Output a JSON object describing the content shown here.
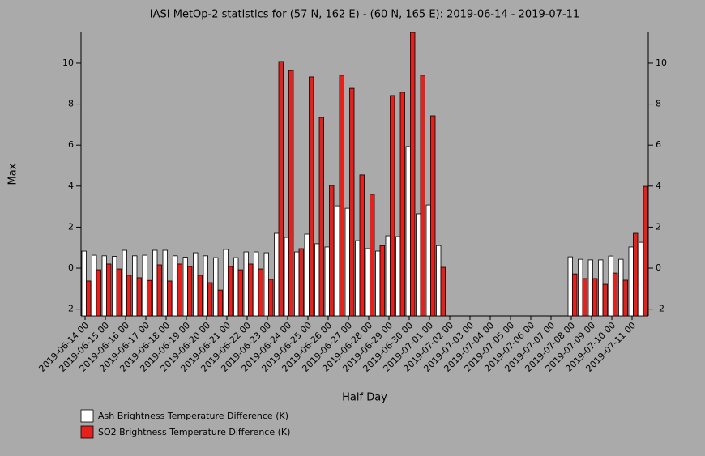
{
  "chart_data": {
    "type": "bar",
    "title": "IASI MetOp-2 statistics for (57 N, 162 E) - (60 N, 165 E): 2019-06-14 - 2019-07-11",
    "x_label": "Half Day",
    "y_label": "Max",
    "categories": [
      "2019-06-14 00",
      null,
      "2019-06-15 00",
      null,
      "2019-06-16 00",
      null,
      "2019-06-17 00",
      null,
      "2019-06-18 00",
      null,
      "2019-06-19 00",
      null,
      "2019-06-20 00",
      null,
      "2019-06-21 00",
      null,
      "2019-06-22 00",
      null,
      "2019-06-23 00",
      null,
      "2019-06-24 00",
      null,
      "2019-06-25 00",
      null,
      "2019-06-26 00",
      null,
      "2019-06-27 00",
      null,
      "2019-06-28 00",
      null,
      "2019-06-29 00",
      null,
      "2019-06-30 00",
      null,
      "2019-07-01 00",
      null,
      "2019-07-02 00",
      null,
      "2019-07-03 00",
      null,
      "2019-07-04 00",
      null,
      "2019-07-05 00",
      null,
      "2019-07-06 00",
      null,
      "2019-07-07 00",
      null,
      "2019-07-08 00",
      null,
      "2019-07-09 00",
      null,
      "2019-07-10 00",
      null,
      "2019-07-11 00",
      null
    ],
    "series": [
      {
        "name": "Ash Brightness Temperature Difference (K)",
        "color": "#ffffff",
        "values": [
          0.83,
          0.63,
          0.6,
          0.57,
          0.87,
          0.6,
          0.63,
          0.87,
          0.87,
          0.6,
          0.53,
          0.75,
          0.6,
          0.51,
          0.91,
          0.51,
          0.79,
          0.79,
          0.75,
          1.7,
          1.5,
          0.79,
          1.66,
          1.19,
          1.03,
          3.04,
          2.92,
          1.34,
          0.95,
          0.83,
          1.58,
          1.54,
          5.93,
          2.65,
          3.08,
          1.1,
          null,
          null,
          null,
          null,
          null,
          null,
          null,
          null,
          null,
          null,
          null,
          null,
          0.55,
          0.43,
          0.4,
          0.4,
          0.59,
          0.43,
          1.03,
          1.26
        ]
      },
      {
        "name": "SO2 Brightness Temperature Difference (K)",
        "color": "#e8201c",
        "values": [
          -0.63,
          -0.08,
          0.2,
          -0.04,
          -0.35,
          -0.47,
          -0.6,
          0.16,
          -0.63,
          0.2,
          0.08,
          -0.35,
          -0.71,
          -1.07,
          0.08,
          -0.08,
          0.2,
          -0.04,
          -0.55,
          10.08,
          9.64,
          0.95,
          9.33,
          7.35,
          4.03,
          9.41,
          8.77,
          4.55,
          3.6,
          1.1,
          8.42,
          8.58,
          11.5,
          9.41,
          7.43,
          0.04,
          null,
          null,
          null,
          null,
          null,
          null,
          null,
          null,
          null,
          null,
          null,
          null,
          -0.28,
          -0.51,
          -0.51,
          -0.79,
          -0.24,
          -0.59,
          1.7,
          3.99
        ]
      }
    ],
    "ylim": [
      -2.33,
      11.5
    ],
    "yticks": [
      -2,
      0,
      2,
      4,
      6,
      8,
      10
    ]
  }
}
